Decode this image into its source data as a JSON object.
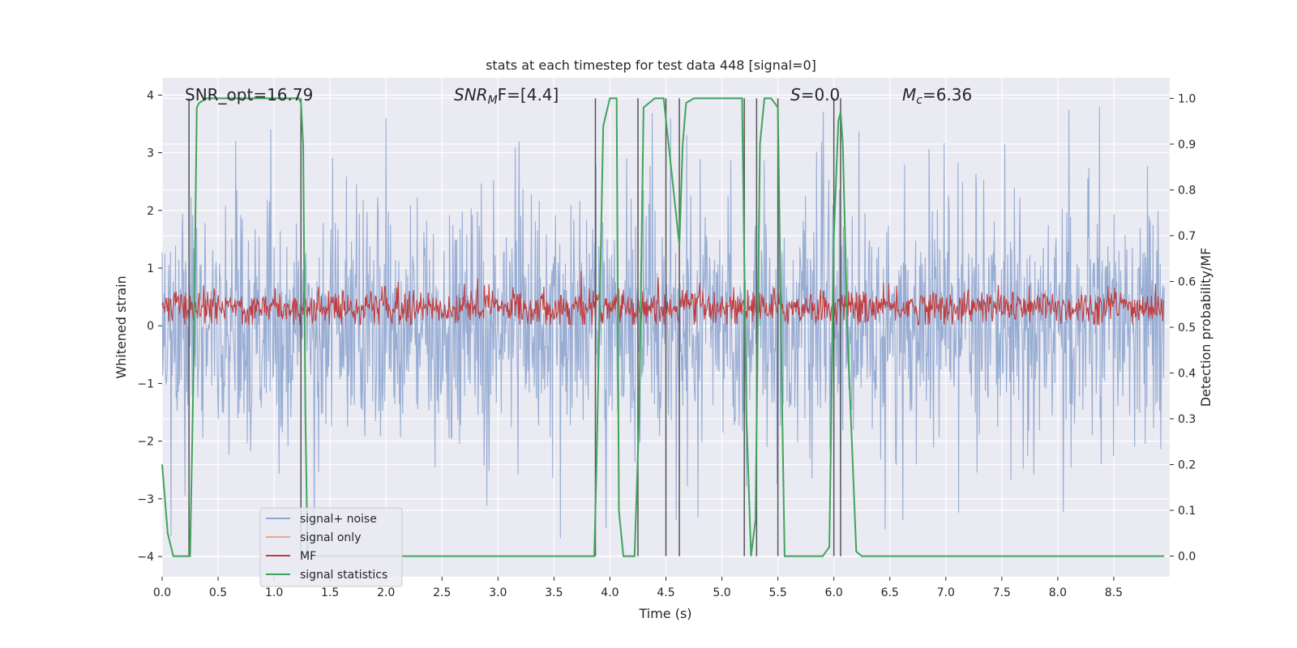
{
  "chart_data": {
    "type": "line",
    "title": "stats at each timestep for test data 448 [signal=0]",
    "xlabel": "Time (s)",
    "ylabel": "Whitened strain",
    "y2label": "Detection probability/MF",
    "xlim": [
      0.0,
      9.0
    ],
    "ylim": [
      -4.35,
      4.3
    ],
    "y2lim": [
      -0.045,
      1.045
    ],
    "xticks": [
      0.0,
      0.5,
      1.0,
      1.5,
      2.0,
      2.5,
      3.0,
      3.5,
      4.0,
      4.5,
      5.0,
      5.5,
      6.0,
      6.5,
      7.0,
      7.5,
      8.0,
      8.5
    ],
    "xtick_labels": [
      "0.0",
      "0.5",
      "1.0",
      "1.5",
      "2.0",
      "2.5",
      "3.0",
      "3.5",
      "4.0",
      "4.5",
      "5.0",
      "5.5",
      "6.0",
      "6.5",
      "7.0",
      "7.5",
      "8.0",
      "8.5"
    ],
    "yticks": [
      4,
      3,
      2,
      1,
      0,
      -1,
      -2,
      -3,
      -4
    ],
    "ytick_labels": [
      "4",
      "3",
      "2",
      "1",
      "0",
      "−1",
      "−2",
      "−3",
      "−4"
    ],
    "y2ticks": [
      1.0,
      0.9,
      0.8,
      0.7,
      0.6,
      0.5,
      0.4,
      0.3,
      0.2,
      0.1,
      0.0
    ],
    "y2tick_labels": [
      "1.0",
      "0.9",
      "0.8",
      "0.7",
      "0.6",
      "0.5",
      "0.4",
      "0.3",
      "0.2",
      "0.1",
      "0.0"
    ],
    "grid": true,
    "legend_position": "lower-left",
    "legend": [
      {
        "label": "signal+ noise",
        "color": "#8fa6d0"
      },
      {
        "label": "signal only",
        "color": "#e8a98a"
      },
      {
        "label": "MF",
        "color": "#c03d3e"
      },
      {
        "label": "signal statistics",
        "color": "#3fa45b"
      }
    ],
    "annotations": {
      "snr_opt": "SNR_opt=16.79",
      "snr_mf_main": "SNR",
      "snr_mf_sub": "M",
      "snr_mf_rest": "F=[4.4]",
      "s_main": "S",
      "s_rest": "=0.0",
      "mc_main": "M",
      "mc_sub": "c",
      "mc_rest": "=6.36"
    },
    "signal_plus_noise": {
      "axis": "left",
      "description_range": [
        -4.0,
        3.9
      ],
      "typical_envelope": [
        -1.6,
        1.5
      ]
    },
    "mf": {
      "axis": "left",
      "typical_range": [
        0.0,
        0.95
      ]
    },
    "signal_statistics": {
      "axis": "right",
      "x": [
        0.0,
        0.05,
        0.1,
        0.15,
        0.25,
        0.28,
        0.31,
        0.33,
        0.4,
        1.22,
        1.24,
        1.26,
        1.28,
        1.3,
        1.4,
        3.86,
        3.88,
        3.94,
        4.0,
        4.06,
        4.08,
        4.12,
        4.22,
        4.26,
        4.3,
        4.4,
        4.48,
        4.62,
        4.65,
        4.68,
        4.75,
        5.18,
        5.22,
        5.26,
        5.3,
        5.34,
        5.38,
        5.44,
        5.5,
        5.54,
        5.56,
        5.6,
        5.9,
        5.96,
        6.0,
        6.04,
        6.06,
        6.08,
        6.12,
        6.2,
        6.25,
        8.95
      ],
      "y": [
        0.2,
        0.05,
        0.0,
        0.0,
        0.0,
        0.4,
        0.98,
        0.99,
        1.0,
        1.0,
        0.99,
        0.9,
        0.3,
        0.0,
        0.0,
        0.0,
        0.2,
        0.94,
        1.0,
        1.0,
        0.1,
        0.0,
        0.0,
        0.3,
        0.98,
        1.0,
        1.0,
        0.68,
        0.9,
        0.99,
        1.0,
        1.0,
        0.3,
        0.0,
        0.08,
        0.9,
        1.0,
        1.0,
        0.98,
        0.3,
        0.0,
        0.0,
        0.0,
        0.02,
        0.7,
        0.95,
        0.97,
        0.9,
        0.5,
        0.01,
        0.0,
        0.0
      ]
    },
    "threshold_lines": {
      "color": "#555555",
      "x": [
        0.24,
        1.24,
        3.87,
        4.25,
        4.5,
        4.62,
        5.2,
        5.31,
        5.5,
        6.0,
        6.06
      ],
      "y2_top": 1.0,
      "y2_bottom": 0.0
    }
  }
}
